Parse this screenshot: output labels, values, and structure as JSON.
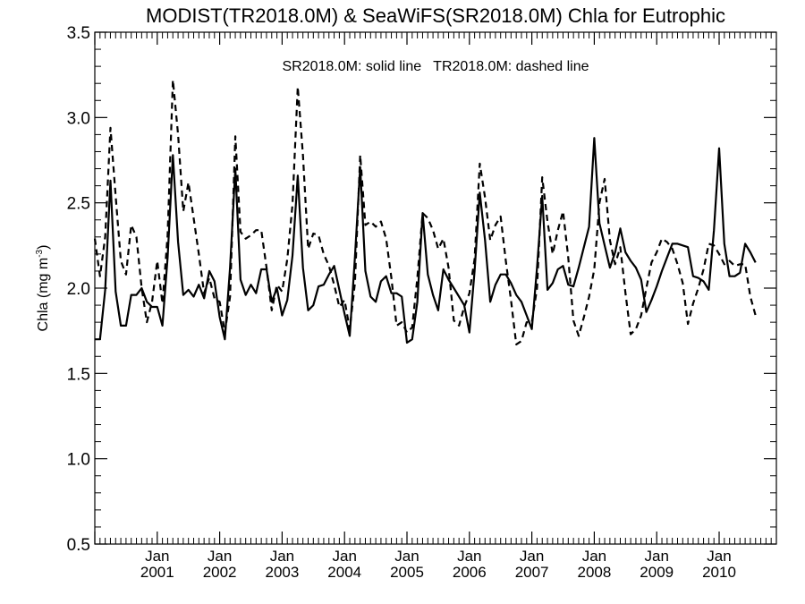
{
  "chart_data": {
    "type": "line",
    "title": "MODIST(TR2018.0M) & SeaWiFS(SR2018.0M)  Chla for Eutrophic",
    "annotation": "SR2018.0M: solid line   TR2018.0M: dashed line",
    "ylabel_main": "Chla (mg m",
    "ylabel_sup": "-3",
    "ylabel_close": ")",
    "xlim": [
      "2000-01",
      "2010-12"
    ],
    "ylim": [
      0.5,
      3.5
    ],
    "yticks": [
      "0.5",
      "1.0",
      "1.5",
      "2.0",
      "2.5",
      "3.0",
      "3.5"
    ],
    "xticks": [
      {
        "month": "Jan",
        "year": "2001"
      },
      {
        "month": "Jan",
        "year": "2002"
      },
      {
        "month": "Jan",
        "year": "2003"
      },
      {
        "month": "Jan",
        "year": "2004"
      },
      {
        "month": "Jan",
        "year": "2005"
      },
      {
        "month": "Jan",
        "year": "2006"
      },
      {
        "month": "Jan",
        "year": "2007"
      },
      {
        "month": "Jan",
        "year": "2008"
      },
      {
        "month": "Jan",
        "year": "2009"
      },
      {
        "month": "Jan",
        "year": "2010"
      }
    ],
    "grid": false,
    "series": [
      {
        "name": "SR2018.0M",
        "style": "solid",
        "start": "2000-01",
        "values": [
          1.7,
          1.7,
          1.99,
          2.63,
          1.98,
          1.78,
          1.78,
          1.96,
          1.96,
          2.0,
          1.92,
          1.89,
          1.89,
          1.78,
          2.18,
          2.78,
          2.27,
          1.96,
          1.99,
          1.95,
          2.02,
          1.94,
          2.1,
          2.04,
          1.83,
          1.7,
          2.12,
          2.7,
          2.05,
          1.96,
          2.02,
          1.97,
          2.11,
          2.11,
          1.92,
          2.0,
          1.84,
          1.93,
          2.19,
          2.66,
          2.12,
          1.87,
          1.9,
          2.01,
          2.02,
          2.08,
          2.13,
          1.99,
          1.85,
          1.72,
          2.18,
          2.71,
          2.1,
          1.95,
          1.92,
          2.04,
          2.07,
          1.97,
          1.97,
          1.95,
          1.68,
          1.7,
          1.92,
          2.44,
          2.08,
          1.96,
          1.87,
          2.11,
          2.05,
          2.0,
          1.95,
          1.9,
          1.74,
          2.1,
          2.56,
          2.28,
          1.92,
          2.02,
          2.08,
          2.08,
          2.03,
          1.96,
          1.92,
          1.84,
          1.76,
          2.12,
          2.54,
          1.99,
          2.03,
          2.11,
          2.13,
          2.02,
          2.01,
          2.12,
          2.24,
          2.36,
          2.88,
          2.38,
          2.25,
          2.12,
          2.21,
          2.35,
          2.21,
          2.16,
          2.12,
          2.05,
          1.86,
          1.93,
          2.01,
          2.1,
          2.18,
          2.26,
          2.26,
          2.25,
          2.24,
          2.07,
          2.06,
          2.04,
          1.99,
          2.34,
          2.82,
          2.26,
          2.07,
          2.07,
          2.09,
          2.26,
          2.21,
          2.15
        ]
      },
      {
        "name": "TR2018.0M",
        "style": "dashed",
        "start": "2000-01",
        "values": [
          2.29,
          2.07,
          2.3,
          2.94,
          2.54,
          2.16,
          2.08,
          2.37,
          2.3,
          2.0,
          1.8,
          1.92,
          2.16,
          1.91,
          2.31,
          3.22,
          2.9,
          2.45,
          2.62,
          2.41,
          2.2,
          1.97,
          2.06,
          1.94,
          1.92,
          1.74,
          1.95,
          2.89,
          2.33,
          2.29,
          2.31,
          2.34,
          2.34,
          2.12,
          1.87,
          2.02,
          1.98,
          2.17,
          2.49,
          3.18,
          2.78,
          2.23,
          2.32,
          2.31,
          2.2,
          2.13,
          2.02,
          1.89,
          1.93,
          1.76,
          2.03,
          2.78,
          2.37,
          2.39,
          2.36,
          2.39,
          2.29,
          2.06,
          1.78,
          1.8,
          1.74,
          1.77,
          2.06,
          2.44,
          2.41,
          2.34,
          2.23,
          2.29,
          2.12,
          1.81,
          1.78,
          1.89,
          1.97,
          2.17,
          2.73,
          2.53,
          2.28,
          2.37,
          2.42,
          2.16,
          1.93,
          1.67,
          1.69,
          1.8,
          1.8,
          2.0,
          2.65,
          2.39,
          2.2,
          2.34,
          2.45,
          2.18,
          1.81,
          1.72,
          1.83,
          1.95,
          2.11,
          2.5,
          2.64,
          2.28,
          2.14,
          2.24,
          1.97,
          1.73,
          1.76,
          1.84,
          2.0,
          2.15,
          2.21,
          2.29,
          2.27,
          2.23,
          2.14,
          2.03,
          1.79,
          1.91,
          2.0,
          2.11,
          2.26,
          2.25,
          2.2,
          2.14,
          2.16,
          2.13,
          2.14,
          2.14,
          1.95,
          1.84
        ]
      }
    ]
  }
}
